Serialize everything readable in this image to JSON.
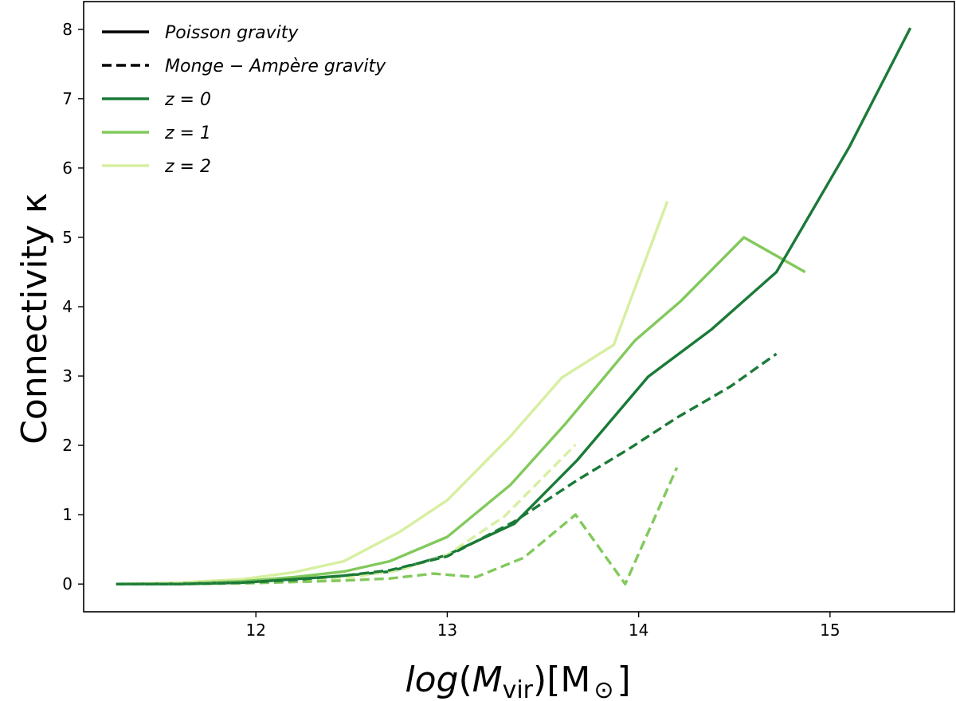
{
  "chart_data": {
    "type": "line",
    "title": "",
    "ylabel": "Connectivity κ",
    "xlabel": {
      "log": "log",
      "open": "(",
      "M": "M",
      "sub": "vir",
      "close": ")",
      "unit_open": "[",
      "unit_M": "M",
      "unit_sym": "⊙",
      "unit_close": "]"
    },
    "xlim": [
      11.1,
      15.65
    ],
    "ylim": [
      -0.4,
      8.4
    ],
    "xticks": [
      12,
      13,
      14,
      15
    ],
    "yticks": [
      0,
      1,
      2,
      3,
      4,
      5,
      6,
      7,
      8
    ],
    "legend": {
      "position": "top-left",
      "entries": [
        {
          "label": "Poisson gravity",
          "style": "solid",
          "color": "#000000"
        },
        {
          "label": "Monge − Ampère gravity",
          "style": "dashed",
          "color": "#000000"
        },
        {
          "label": "z = 0",
          "style": "solid",
          "color": "#1a7a37"
        },
        {
          "label": "z = 1",
          "style": "solid",
          "color": "#82c95c"
        },
        {
          "label": "z = 2",
          "style": "solid",
          "color": "#d7efa0"
        }
      ]
    },
    "series": [
      {
        "name": "z = 2 Poisson",
        "style": "solid",
        "color": "#d7efa0",
        "x": [
          11.27,
          11.6,
          11.93,
          12.2,
          12.46,
          12.75,
          13.0,
          13.33,
          13.6,
          13.87,
          14.15
        ],
        "y": [
          0.0,
          0.02,
          0.07,
          0.17,
          0.33,
          0.75,
          1.21,
          2.13,
          2.98,
          3.45,
          5.52
        ]
      },
      {
        "name": "z = 1 Poisson",
        "style": "solid",
        "color": "#82c95c",
        "x": [
          11.27,
          11.6,
          11.93,
          12.2,
          12.46,
          12.7,
          13.0,
          13.33,
          13.62,
          13.98,
          14.22,
          14.55,
          14.87
        ],
        "y": [
          0.0,
          0.01,
          0.04,
          0.1,
          0.18,
          0.33,
          0.68,
          1.43,
          2.32,
          3.51,
          4.08,
          5.0,
          4.5
        ]
      },
      {
        "name": "z = 0 Poisson",
        "style": "solid",
        "color": "#1a7a37",
        "x": [
          11.27,
          11.6,
          11.93,
          12.2,
          12.46,
          12.7,
          13.0,
          13.35,
          13.68,
          14.05,
          14.38,
          14.72,
          15.1,
          15.42
        ],
        "y": [
          0.0,
          0.0,
          0.02,
          0.07,
          0.12,
          0.18,
          0.42,
          0.87,
          1.79,
          2.99,
          3.67,
          4.5,
          6.3,
          8.02
        ]
      },
      {
        "name": "z = 2 Monge-Ampère",
        "style": "dashed",
        "color": "#d7efa0",
        "x": [
          11.27,
          11.6,
          11.93,
          12.2,
          12.5,
          12.75,
          13.0,
          13.3,
          13.67
        ],
        "y": [
          0.0,
          0.01,
          0.02,
          0.05,
          0.1,
          0.2,
          0.42,
          0.98,
          2.01
        ]
      },
      {
        "name": "z = 1 Monge-Ampère",
        "style": "dashed",
        "color": "#82c95c",
        "x": [
          11.27,
          11.6,
          11.93,
          12.2,
          12.46,
          12.7,
          12.93,
          13.15,
          13.4,
          13.67,
          13.93,
          14.2
        ],
        "y": [
          0.0,
          0.0,
          0.01,
          0.03,
          0.05,
          0.08,
          0.15,
          0.1,
          0.38,
          1.0,
          0.0,
          1.68
        ]
      },
      {
        "name": "z = 0 Monge-Ampère",
        "style": "dashed",
        "color": "#1a7a37",
        "x": [
          11.27,
          11.6,
          11.93,
          12.2,
          12.46,
          12.7,
          13.0,
          13.35,
          13.68,
          13.95,
          14.2,
          14.48,
          14.72
        ],
        "y": [
          0.0,
          0.0,
          0.02,
          0.06,
          0.12,
          0.2,
          0.4,
          0.9,
          1.5,
          1.95,
          2.4,
          2.85,
          3.32
        ]
      }
    ]
  }
}
